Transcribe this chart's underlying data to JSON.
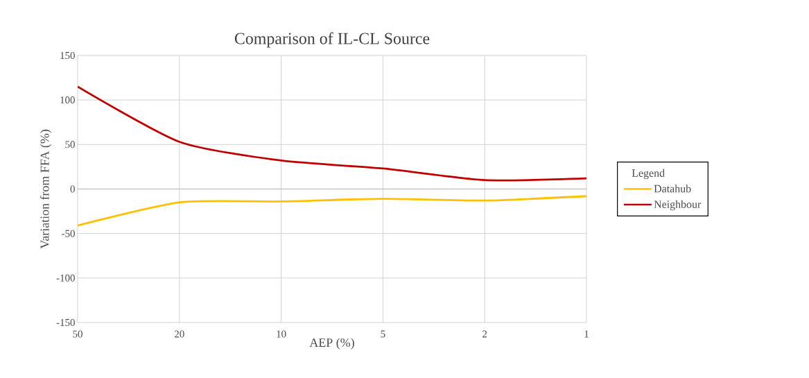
{
  "chart_data": {
    "type": "line",
    "title": "Comparison of IL-CL Source",
    "xlabel": "AEP (%)",
    "ylabel": "Variation from FFA (%)",
    "legend_title": "Legend",
    "categories": [
      "50",
      "20",
      "10",
      "5",
      "2",
      "1"
    ],
    "series": [
      {
        "name": "Datahub",
        "color": "#ffc000",
        "values": [
          -41,
          -15,
          -14,
          -11,
          -13,
          -8
        ]
      },
      {
        "name": "Neighbour",
        "color": "#c00000",
        "values": [
          115,
          53,
          32,
          23,
          10,
          12
        ]
      }
    ],
    "ylim": [
      -150,
      150
    ],
    "yticks": [
      -150,
      -100,
      -50,
      0,
      50,
      100,
      150
    ],
    "grid": true,
    "legend": "right",
    "marker": "none",
    "line_style": "solid"
  }
}
